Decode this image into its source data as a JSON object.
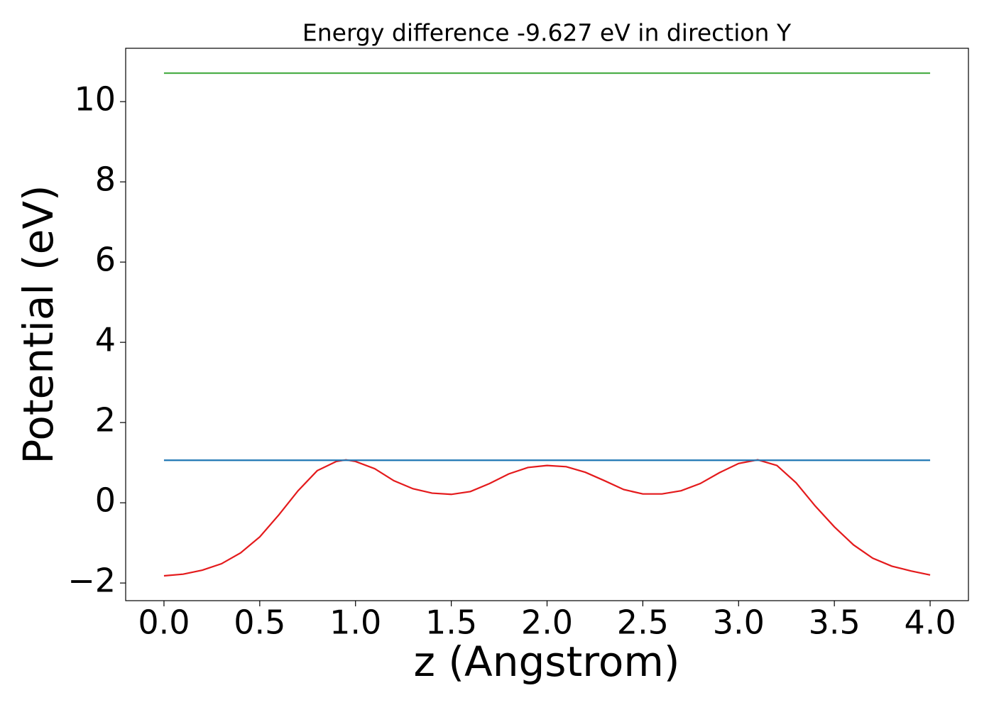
{
  "chart_data": {
    "type": "line",
    "title": "Energy difference -9.627 eV in direction Y",
    "x_label": "z (Angstrom)",
    "y_label": "Potential (eV)",
    "xlim": [
      -0.2,
      4.2
    ],
    "ylim": [
      -2.44,
      11.33
    ],
    "xticks": [
      {
        "value": 0,
        "label": "0.0"
      },
      {
        "value": 0.5,
        "label": "0.5"
      },
      {
        "value": 1,
        "label": "1.0"
      },
      {
        "value": 1.5,
        "label": "1.5"
      },
      {
        "value": 2,
        "label": "2.0"
      },
      {
        "value": 2.5,
        "label": "2.5"
      },
      {
        "value": 3,
        "label": "3.0"
      },
      {
        "value": 3.5,
        "label": "3.5"
      },
      {
        "value": 4,
        "label": "4.0"
      }
    ],
    "yticks": [
      {
        "value": -2,
        "label": "−2"
      },
      0,
      2,
      4,
      6,
      8,
      10
    ],
    "series": [
      {
        "color": "#e41a1c",
        "x": [
          0,
          0.1,
          0.2,
          0.3,
          0.4,
          0.5,
          0.6,
          0.7,
          0.8,
          0.9,
          0.95,
          1.0,
          1.1,
          1.2,
          1.3,
          1.4,
          1.5,
          1.6,
          1.7,
          1.8,
          1.9,
          2.0,
          2.1,
          2.2,
          2.3,
          2.4,
          2.5,
          2.6,
          2.7,
          2.8,
          2.9,
          3.0,
          3.1,
          3.2,
          3.3,
          3.4,
          3.5,
          3.6,
          3.7,
          3.8,
          3.9,
          4.0
        ],
        "values": [
          -1.82,
          -1.78,
          -1.68,
          -1.52,
          -1.25,
          -0.85,
          -0.3,
          0.3,
          0.8,
          1.03,
          1.07,
          1.03,
          0.85,
          0.55,
          0.35,
          0.24,
          0.21,
          0.28,
          0.48,
          0.72,
          0.88,
          0.93,
          0.9,
          0.76,
          0.55,
          0.33,
          0.22,
          0.22,
          0.3,
          0.48,
          0.75,
          0.98,
          1.07,
          0.93,
          0.5,
          -0.08,
          -0.6,
          -1.05,
          -1.38,
          -1.58,
          -1.7,
          -1.8
        ]
      },
      {
        "color": "#1f77b4",
        "x": [
          0,
          4
        ],
        "values": [
          1.06,
          1.06
        ]
      },
      {
        "color": "#4daf4a",
        "x": [
          0,
          4
        ],
        "values": [
          10.71,
          10.71
        ]
      }
    ]
  }
}
